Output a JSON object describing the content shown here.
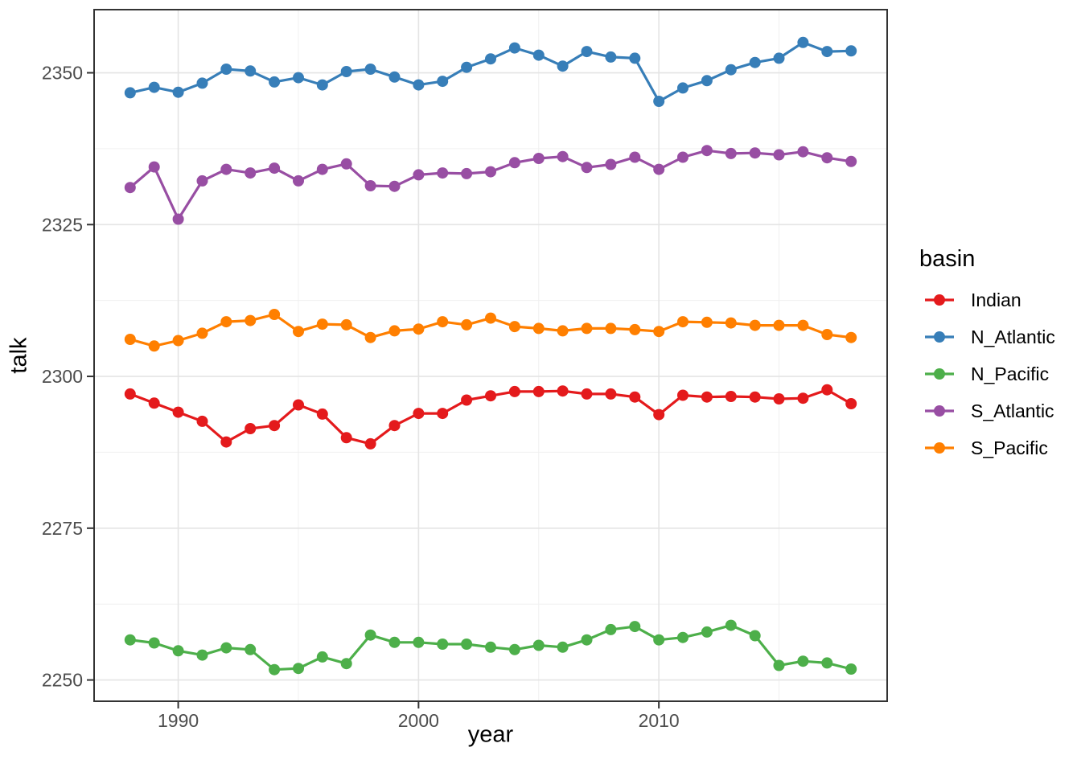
{
  "chart_data": {
    "type": "line",
    "title": "",
    "xlabel": "year",
    "ylabel": "talk",
    "x": [
      1988,
      1989,
      1990,
      1991,
      1992,
      1993,
      1994,
      1995,
      1996,
      1997,
      1998,
      1999,
      2000,
      2001,
      2002,
      2003,
      2004,
      2005,
      2006,
      2007,
      2008,
      2009,
      2010,
      2011,
      2012,
      2013,
      2014,
      2015,
      2016,
      2017,
      2018
    ],
    "series": [
      {
        "name": "Indian",
        "color": "#E41A1C",
        "values": [
          2297.1,
          2295.6,
          2294.1,
          2292.6,
          2289.2,
          2291.4,
          2291.9,
          2295.3,
          2293.8,
          2289.9,
          2288.9,
          2291.9,
          2293.9,
          2293.9,
          2296.1,
          2296.8,
          2297.5,
          2297.5,
          2297.6,
          2297.1,
          2297.1,
          2296.6,
          2293.7,
          2296.9,
          2296.6,
          2296.7,
          2296.6,
          2296.3,
          2296.4,
          2297.8,
          2295.5
        ]
      },
      {
        "name": "N_Atlantic",
        "color": "#377EB8",
        "values": [
          2346.7,
          2347.6,
          2346.8,
          2348.3,
          2350.6,
          2350.3,
          2348.5,
          2349.2,
          2348.0,
          2350.2,
          2350.6,
          2349.3,
          2348.0,
          2348.6,
          2350.9,
          2352.3,
          2354.1,
          2352.9,
          2351.1,
          2353.5,
          2352.6,
          2352.4,
          2345.3,
          2347.5,
          2348.7,
          2350.5,
          2351.7,
          2352.4,
          2355.0,
          2353.5,
          2353.6
        ]
      },
      {
        "name": "N_Pacific",
        "color": "#4DAF4A",
        "values": [
          2256.6,
          2256.1,
          2254.8,
          2254.1,
          2255.3,
          2255.0,
          2251.7,
          2251.9,
          2253.8,
          2252.7,
          2257.4,
          2256.2,
          2256.2,
          2255.9,
          2255.9,
          2255.4,
          2255.0,
          2255.7,
          2255.4,
          2256.6,
          2258.3,
          2258.8,
          2256.6,
          2257.0,
          2257.9,
          2259.0,
          2257.3,
          2252.4,
          2253.1,
          2252.8,
          2251.8
        ]
      },
      {
        "name": "S_Atlantic",
        "color": "#984EA3",
        "values": [
          2331.1,
          2334.5,
          2325.9,
          2332.2,
          2334.1,
          2333.5,
          2334.3,
          2332.2,
          2334.1,
          2335.0,
          2331.4,
          2331.3,
          2333.2,
          2333.5,
          2333.4,
          2333.7,
          2335.2,
          2335.9,
          2336.2,
          2334.4,
          2334.9,
          2336.1,
          2334.1,
          2336.1,
          2337.2,
          2336.7,
          2336.8,
          2336.5,
          2337.0,
          2336.0,
          2335.4
        ]
      },
      {
        "name": "S_Pacific",
        "color": "#FF7F00",
        "values": [
          2306.1,
          2305.0,
          2305.9,
          2307.1,
          2309.0,
          2309.2,
          2310.2,
          2307.4,
          2308.6,
          2308.5,
          2306.4,
          2307.5,
          2307.8,
          2309.0,
          2308.5,
          2309.6,
          2308.2,
          2307.9,
          2307.5,
          2307.9,
          2307.9,
          2307.7,
          2307.4,
          2309.0,
          2308.9,
          2308.8,
          2308.4,
          2308.4,
          2308.4,
          2306.9,
          2306.4
        ]
      }
    ],
    "xticks": [
      1990,
      2000,
      2010
    ],
    "xminor": [
      1995,
      2005,
      2015
    ],
    "yticks": [
      2250,
      2275,
      2300,
      2325,
      2350
    ],
    "yminor": [
      2262.5,
      2287.5,
      2312.5,
      2337.5
    ],
    "xlim": [
      1986.5,
      2019.5
    ],
    "ylim": [
      2246.5,
      2360.4
    ],
    "grid": true,
    "marker": "circle",
    "legend": {
      "title": "basin",
      "position": "right"
    }
  },
  "colors": {
    "background": "#FFFFFF",
    "panel_border": "#333333",
    "grid_major": "#E4E4E4",
    "grid_minor": "#F0F0F0",
    "tick_mark": "#333333",
    "tick_label": "#4D4D4D",
    "axis_title": "#000000"
  }
}
